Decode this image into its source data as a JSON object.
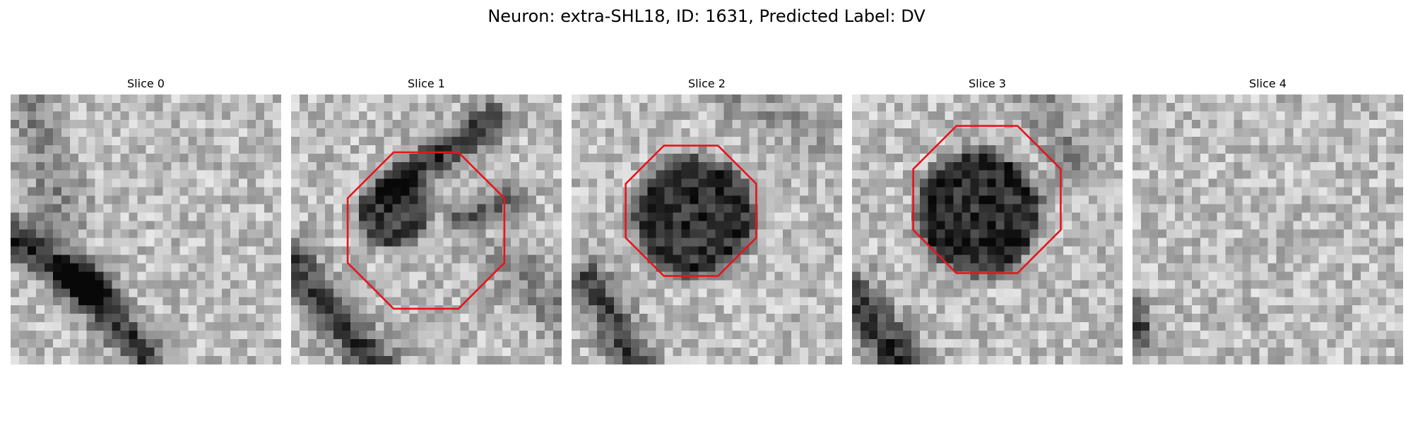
{
  "figure": {
    "title": "Neuron: extra-SHL18, ID: 1631, Predicted Label: DV",
    "colormap": "gray",
    "outline_color": "#e8141b"
  },
  "panels": [
    {
      "title": "Slice 0",
      "has_outline": false
    },
    {
      "title": "Slice 1",
      "has_outline": true
    },
    {
      "title": "Slice 2",
      "has_outline": true
    },
    {
      "title": "Slice 3",
      "has_outline": true
    },
    {
      "title": "Slice 4",
      "has_outline": false
    }
  ]
}
